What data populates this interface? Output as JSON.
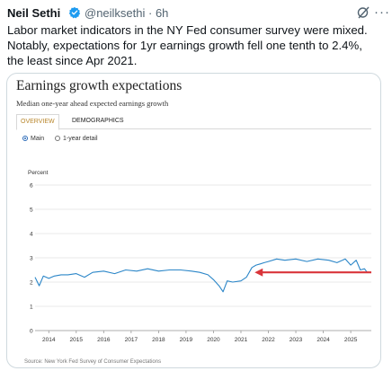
{
  "tweet": {
    "author_name": "Neil Sethi",
    "author_handle": "@neilksethi · 6h",
    "text": "Labor market indicators in the NY Fed consumer survey were mixed. Notably, expectations for 1yr earnings growth fell one tenth to 2.4%, the least since Apr 2021."
  },
  "icons": {
    "verified": "verified-badge-icon",
    "grok": "grok-icon",
    "more": "more-options-icon"
  },
  "card": {
    "title": "Earnings growth expectations",
    "subtitle": "Median one-year ahead expected earnings growth",
    "tabs": [
      {
        "label": "OVERVIEW",
        "active": true
      },
      {
        "label": "DEMOGRAPHICS",
        "active": false
      }
    ],
    "radios": [
      {
        "label": "Main",
        "selected": true
      },
      {
        "label": "1-year detail",
        "selected": false
      }
    ],
    "source": "Source: New York Fed Survey of Consumer Expectations",
    "colors": {
      "line": "#2b86c8",
      "arrow": "#d9353a",
      "active_tab": "#b8862b"
    }
  },
  "chart_data": {
    "type": "line",
    "ylabel": "Percent",
    "ylim": [
      0,
      6
    ],
    "yticks": [
      "0",
      "1",
      "2",
      "3",
      "4",
      "5",
      "6"
    ],
    "xticks": [
      "2014",
      "2015",
      "2016",
      "2017",
      "2018",
      "2019",
      "2020",
      "2021",
      "2022",
      "2023",
      "2024",
      "2025"
    ],
    "grid": true,
    "annotation": {
      "type": "arrow",
      "pointing": "left",
      "at_x": 2021.5,
      "at_y": 2.4
    },
    "series": [
      {
        "x": [
          2013.5,
          2013.65,
          2013.8,
          2014.0,
          2014.2,
          2014.45,
          2014.7,
          2015.0,
          2015.3,
          2015.6,
          2016.0,
          2016.4,
          2016.8,
          2017.2,
          2017.6,
          2018.0,
          2018.4,
          2018.8,
          2019.2,
          2019.5,
          2019.8,
          2020.0,
          2020.2,
          2020.35,
          2020.5,
          2020.7,
          2021.0,
          2021.2,
          2021.4,
          2021.55,
          2021.7,
          2021.85,
          2022.0,
          2022.3,
          2022.6,
          2023.0,
          2023.4,
          2023.8,
          2024.2,
          2024.5,
          2024.8,
          2025.0,
          2025.2,
          2025.35,
          2025.5,
          2025.6
        ],
        "values": [
          2.2,
          1.85,
          2.25,
          2.15,
          2.25,
          2.3,
          2.3,
          2.35,
          2.2,
          2.4,
          2.45,
          2.35,
          2.5,
          2.45,
          2.55,
          2.45,
          2.5,
          2.5,
          2.45,
          2.4,
          2.3,
          2.1,
          1.85,
          1.6,
          2.05,
          2.0,
          2.05,
          2.2,
          2.6,
          2.7,
          2.75,
          2.8,
          2.85,
          2.95,
          2.9,
          2.95,
          2.85,
          2.95,
          2.9,
          2.8,
          2.95,
          2.7,
          2.9,
          2.5,
          2.55,
          2.4
        ]
      }
    ]
  }
}
